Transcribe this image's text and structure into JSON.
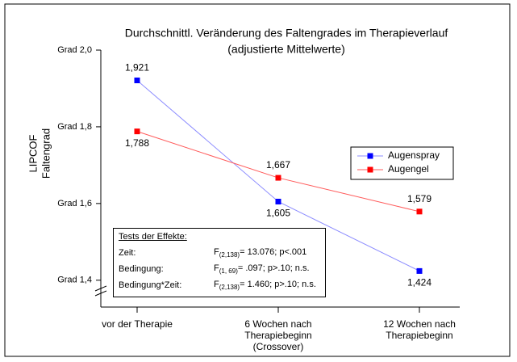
{
  "chart_data": {
    "type": "line",
    "title": "Durchschnittl. Veränderung des Faltengrades im Therapieverlauf",
    "subtitle": "(adjustierte Mittelwerte)",
    "ylabel": [
      "LIPCOF",
      "Faltengrad"
    ],
    "categories": [
      "vor der Therapie",
      "6 Wochen nach\nTherapiebeginn\n(Crossover)",
      "12 Wochen nach\nTherapiebeginn"
    ],
    "series": [
      {
        "name": "Augenspray",
        "color": "#0000ff",
        "line_color": "#8c8cff",
        "values": [
          1.921,
          1.605,
          1.424
        ],
        "value_labels": [
          "1,921",
          "1,605",
          "1,424"
        ]
      },
      {
        "name": "Augengel",
        "color": "#ff0000",
        "line_color": "#ff5a5a",
        "values": [
          1.788,
          1.667,
          1.579
        ],
        "value_labels": [
          "1,788",
          "1,667",
          "1,579"
        ]
      }
    ],
    "ylim": [
      1.33,
      2.0
    ],
    "yticks": [
      {
        "value": 1.4,
        "label": "Grad 1,4"
      },
      {
        "value": 1.6,
        "label": "Grad 1,6"
      },
      {
        "value": 1.8,
        "label": "Grad 1,8"
      },
      {
        "value": 2.0,
        "label": "Grad 2,0"
      }
    ],
    "legend": "right",
    "annotation": {
      "title": "Tests der Effekte:",
      "rows": [
        {
          "label": "Zeit:",
          "stat": "F",
          "df": "(2,138)",
          "text": "= 13.076; p<.001"
        },
        {
          "label": "Bedingung:",
          "stat": "F",
          "df": "(1, 69)",
          "text": "= .097; p>.10; n.s."
        },
        {
          "label": "Bedingung*Zeit:",
          "stat": "F",
          "df": "(2,138)",
          "text": "= 1.460; p>.10; n.s."
        }
      ]
    }
  }
}
